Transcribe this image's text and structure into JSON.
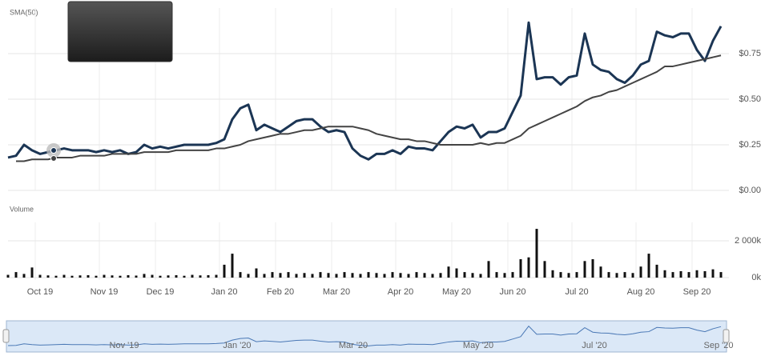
{
  "chart_data": [
    {
      "type": "line",
      "ylim": [
        0,
        1
      ],
      "yticks": [
        {
          "value": 0,
          "label": "$0.00"
        },
        {
          "value": 0.25,
          "label": "$0.25"
        },
        {
          "value": 0.5,
          "label": "$0.50"
        },
        {
          "value": 0.75,
          "label": "$0.75"
        }
      ],
      "grid": true,
      "series": [
        {
          "color": "#1b3554",
          "values": [
            0.18,
            0.19,
            0.25,
            0.22,
            0.2,
            0.21,
            0.22,
            0.23,
            0.22,
            0.22,
            0.22,
            0.21,
            0.22,
            0.21,
            0.22,
            0.2,
            0.21,
            0.25,
            0.23,
            0.24,
            0.23,
            0.24,
            0.25,
            0.25,
            0.25,
            0.25,
            0.26,
            0.28,
            0.39,
            0.45,
            0.47,
            0.33,
            0.36,
            0.34,
            0.32,
            0.35,
            0.38,
            0.39,
            0.39,
            0.35,
            0.32,
            0.33,
            0.32,
            0.23,
            0.19,
            0.17,
            0.2,
            0.2,
            0.22,
            0.2,
            0.24,
            0.23,
            0.23,
            0.22,
            0.27,
            0.32,
            0.35,
            0.34,
            0.36,
            0.29,
            0.32,
            0.32,
            0.34,
            0.43,
            0.52,
            0.92,
            0.61,
            0.62,
            0.62,
            0.58,
            0.62,
            0.63,
            0.86,
            0.69,
            0.66,
            0.65,
            0.61,
            0.59,
            0.63,
            0.69,
            0.71,
            0.87,
            0.85,
            0.84,
            0.86,
            0.86,
            0.77,
            0.71,
            0.82,
            0.9
          ]
        },
        {
          "name": "SMA(50)",
          "color": "#444444",
          "values": [
            null,
            0.16,
            0.16,
            0.17,
            0.17,
            0.17,
            0.18,
            0.18,
            0.18,
            0.19,
            0.19,
            0.19,
            0.19,
            0.2,
            0.2,
            0.2,
            0.2,
            0.21,
            0.21,
            0.21,
            0.21,
            0.22,
            0.22,
            0.22,
            0.22,
            0.22,
            0.23,
            0.23,
            0.24,
            0.25,
            0.27,
            0.28,
            0.29,
            0.3,
            0.31,
            0.31,
            0.32,
            0.33,
            0.33,
            0.34,
            0.35,
            0.35,
            0.35,
            0.35,
            0.34,
            0.33,
            0.31,
            0.3,
            0.29,
            0.28,
            0.28,
            0.27,
            0.27,
            0.26,
            0.25,
            0.25,
            0.25,
            0.25,
            0.25,
            0.26,
            0.25,
            0.26,
            0.26,
            0.28,
            0.3,
            0.34,
            0.36,
            0.38,
            0.4,
            0.42,
            0.44,
            0.46,
            0.49,
            0.51,
            0.52,
            0.54,
            0.55,
            0.57,
            0.59,
            0.61,
            0.63,
            0.65,
            0.68,
            0.68,
            0.69,
            0.7,
            0.71,
            0.72,
            0.73,
            0.74
          ]
        }
      ]
    },
    {
      "type": "bar",
      "title": "Volume",
      "categories": [
        null,
        null,
        null,
        null,
        "Oct 19",
        null,
        null,
        null,
        null,
        null,
        null,
        null,
        "Nov 19",
        null,
        null,
        null,
        null,
        null,
        null,
        "Dec 19",
        null,
        null,
        null,
        null,
        null,
        null,
        null,
        "Jan 20",
        null,
        null,
        null,
        null,
        null,
        null,
        "Feb 20",
        null,
        null,
        null,
        null,
        null,
        null,
        "Mar 20",
        null,
        null,
        null,
        null,
        null,
        null,
        null,
        "Apr 20",
        null,
        null,
        null,
        null,
        null,
        null,
        "May 20",
        null,
        null,
        null,
        null,
        null,
        null,
        "Jun 20",
        null,
        null,
        null,
        null,
        null,
        null,
        null,
        "Jul 20",
        null,
        null,
        null,
        null,
        null,
        null,
        null,
        "Aug 20",
        null,
        null,
        null,
        null,
        null,
        null,
        "Sep 20",
        null,
        null,
        null
      ],
      "color": "#111111",
      "values": [
        150,
        300,
        200,
        550,
        150,
        120,
        100,
        150,
        100,
        120,
        130,
        100,
        150,
        120,
        100,
        130,
        110,
        200,
        150,
        100,
        120,
        130,
        100,
        150,
        120,
        130,
        150,
        700,
        1300,
        300,
        200,
        500,
        200,
        300,
        250,
        300,
        200,
        250,
        200,
        300,
        250,
        200,
        300,
        250,
        200,
        300,
        250,
        200,
        300,
        250,
        200,
        300,
        250,
        200,
        250,
        600,
        500,
        300,
        250,
        200,
        900,
        300,
        250,
        300,
        1000,
        1100,
        2650,
        900,
        400,
        300,
        250,
        300,
        900,
        1000,
        600,
        300,
        250,
        300,
        250,
        600,
        1300,
        700,
        400,
        300,
        350,
        300,
        400,
        350,
        450,
        300
      ],
      "ylim": [
        0,
        3000
      ],
      "yticks": [
        {
          "value": 0,
          "label": "0k"
        },
        {
          "value": 2000,
          "label": "2 000k"
        }
      ],
      "grid": true
    }
  ],
  "navigator": {
    "labels": [
      "Nov '19",
      "Jan '20",
      "Mar '20",
      "May '20",
      "Jul '20",
      "Sep '20"
    ]
  }
}
